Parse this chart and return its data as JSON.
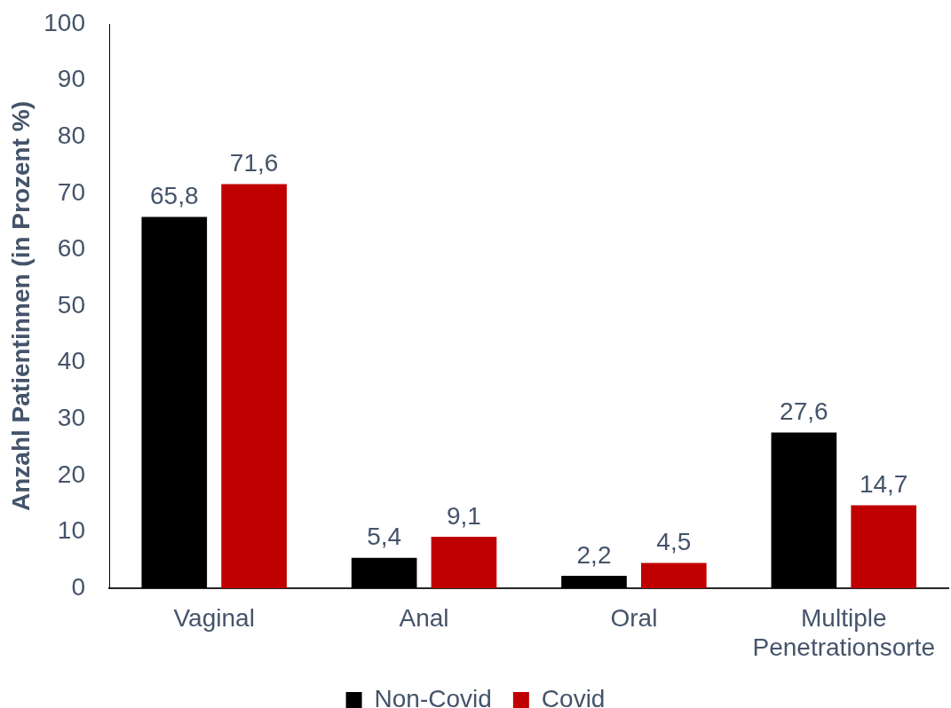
{
  "chart_data": {
    "type": "bar",
    "ylabel": "Anzahl Patientinnen (in Prozent %)",
    "categories": [
      "Vaginal",
      "Anal",
      "Oral",
      "Multiple Penetrationsorte"
    ],
    "series": [
      {
        "name": "Non-Covid",
        "color": "#000000",
        "values": [
          65.8,
          5.4,
          2.2,
          27.6
        ],
        "value_labels": [
          "65,8",
          "5,4",
          "2,2",
          "27,6"
        ]
      },
      {
        "name": "Covid",
        "color": "#c00000",
        "values": [
          71.6,
          9.1,
          4.5,
          14.7
        ],
        "value_labels": [
          "71,6",
          "9,1",
          "4,5",
          "14,7"
        ]
      }
    ],
    "ylim": [
      0,
      100
    ],
    "yticks": [
      0,
      10,
      20,
      30,
      40,
      50,
      60,
      70,
      80,
      90,
      100
    ],
    "grid": false,
    "legend": "bottom"
  }
}
